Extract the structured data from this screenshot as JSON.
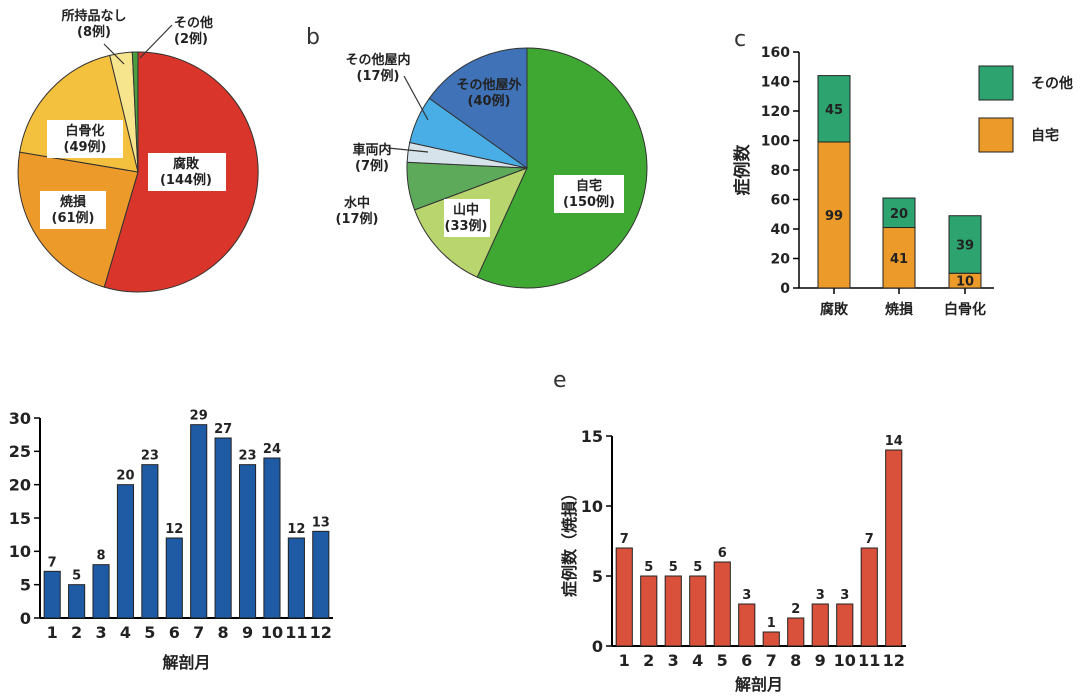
{
  "panels": {
    "b": "b",
    "c": "c",
    "e": "e"
  },
  "chart_data": [
    {
      "id": "a",
      "type": "pie",
      "slices": [
        {
          "label": "腐敗",
          "count_label": "(144例)",
          "value": 144,
          "color": "#d9352b"
        },
        {
          "label": "焼損",
          "count_label": "(61例)",
          "value": 61,
          "color": "#ec9a2a"
        },
        {
          "label": "白骨化",
          "count_label": "(49例)",
          "value": 49,
          "color": "#f3c13d"
        },
        {
          "label": "所持品なし",
          "count_label": "(8例)",
          "value": 8,
          "color": "#f7e58d"
        },
        {
          "label": "その他",
          "count_label": "(2例)",
          "value": 2,
          "color": "#4a9e3f"
        }
      ]
    },
    {
      "id": "b",
      "type": "pie",
      "slices": [
        {
          "label": "自宅",
          "count_label": "(150例)",
          "value": 150,
          "color": "#3fa832"
        },
        {
          "label": "山中",
          "count_label": "(33例)",
          "value": 33,
          "color": "#b9d56e"
        },
        {
          "label": "水中",
          "count_label": "(17例)",
          "value": 17,
          "color": "#5daa5a"
        },
        {
          "label": "車両内",
          "count_label": "(7例)",
          "value": 7,
          "color": "#d6e3ea"
        },
        {
          "label": "その他屋内",
          "count_label": "(17例)",
          "value": 17,
          "color": "#4aaee6"
        },
        {
          "label": "その他屋外",
          "count_label": "(40例)",
          "value": 40,
          "color": "#3f72b6"
        }
      ]
    },
    {
      "id": "c",
      "type": "bar",
      "stacked": true,
      "ylabel": "症例数",
      "ylim": [
        0,
        160
      ],
      "yticks": [
        "0",
        "20",
        "40",
        "60",
        "80",
        "100",
        "120",
        "140",
        "160"
      ],
      "categories": [
        "腐敗",
        "焼損",
        "白骨化"
      ],
      "series": [
        {
          "name": "自宅",
          "values": [
            99,
            41,
            10
          ],
          "color": "#ec9a2a"
        },
        {
          "name": "その他",
          "values": [
            45,
            20,
            39
          ],
          "color": "#2da36f"
        }
      ],
      "legend": "right"
    },
    {
      "id": "d",
      "type": "bar",
      "xlabel": "解剖月",
      "ylim": [
        0,
        30
      ],
      "yticks": [
        "0",
        "5",
        "10",
        "15",
        "20",
        "25",
        "30"
      ],
      "categories": [
        "1",
        "2",
        "3",
        "4",
        "5",
        "6",
        "7",
        "8",
        "9",
        "10",
        "11",
        "12"
      ],
      "values": [
        7,
        5,
        8,
        20,
        23,
        12,
        29,
        27,
        23,
        24,
        12,
        13
      ],
      "color": "#1f5aa5"
    },
    {
      "id": "e",
      "type": "bar",
      "xlabel": "解剖月",
      "ylabel": "症例数（焼損）",
      "ylim": [
        0,
        15
      ],
      "yticks": [
        "0",
        "5",
        "10",
        "15"
      ],
      "categories": [
        "1",
        "2",
        "3",
        "4",
        "5",
        "6",
        "7",
        "8",
        "9",
        "10",
        "11",
        "12"
      ],
      "values": [
        7,
        5,
        5,
        5,
        6,
        3,
        1,
        2,
        3,
        3,
        7,
        14
      ],
      "color": "#d9503b"
    }
  ]
}
